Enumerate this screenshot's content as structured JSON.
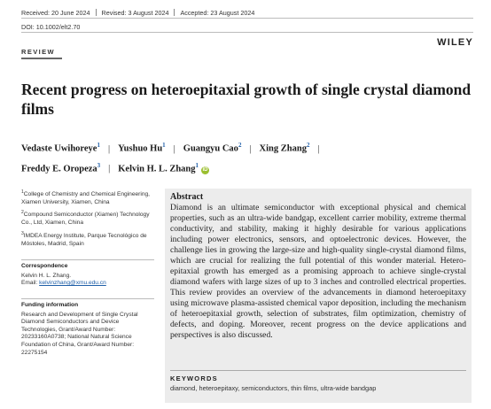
{
  "header": {
    "received": "Received: 20 June 2024",
    "revised": "Revised: 3 August 2024",
    "accepted": "Accepted: 23 August 2024",
    "doi": "DOI: 10.1002/elt2.70",
    "publisher": "WILEY",
    "article_type": "REVIEW"
  },
  "title": "Recent progress on heteroepitaxial growth of single crystal diamond films",
  "authors": [
    {
      "name": "Vedaste Uwihoreye",
      "aff": "1"
    },
    {
      "name": "Yushuo Hu",
      "aff": "1"
    },
    {
      "name": "Guangyu Cao",
      "aff": "2"
    },
    {
      "name": "Xing Zhang",
      "aff": "2"
    },
    {
      "name": "Freddy E. Oropeza",
      "aff": "3"
    },
    {
      "name": "Kelvin H. L. Zhang",
      "aff": "1"
    }
  ],
  "affiliations": [
    {
      "num": "1",
      "text": "College of Chemistry and Chemical Engineering, Xiamen University, Xiamen, China"
    },
    {
      "num": "2",
      "text": "Compound Semiconductor (Xiamen) Technology Co., Ltd, Xiamen, China"
    },
    {
      "num": "3",
      "text": "IMDEA Energy Institute, Parque Tecnológico de Móstoles, Madrid, Spain"
    }
  ],
  "correspondence": {
    "heading": "Correspondence",
    "name": "Kelvin H. L. Zhang.",
    "email_label": "Email:",
    "email": "kelvinzhang@xmu.edu.cn"
  },
  "funding": {
    "heading": "Funding information",
    "text": "Research and Development of Single Crystal Diamond Semiconductors and Device Technologies, Grant/Award Number: 20233160A0738; National Natural Science Foundation of China, Grant/Award Number: 22275154"
  },
  "abstract": {
    "heading": "Abstract",
    "text": "Diamond is an ultimate semiconductor with exceptional physical and chemical properties, such as an ultra-wide bandgap, excellent carrier mobility, extreme thermal conductivity, and stability, making it highly desirable for various applications including power electronics, sensors, and optoelectronic devices. However, the challenge lies in growing the large-size and high-quality single-crystal diamond films, which are crucial for realizing the full potential of this wonder material. Hetero-epitaxial growth has emerged as a promising approach to achieve single-crystal diamond wafers with large sizes of up to 3 inches and controlled electrical properties. This review provides an overview of the advancements in diamond heteroepitaxy using microwave plasma-assisted chemical vapor deposition, including the mechanism of heteroepitaxial growth, selection of substrates, film optimization, chemistry of defects, and doping. Moreover, recent progress on the device applications and perspectives is also discussed."
  },
  "keywords": {
    "heading": "KEYWORDS",
    "text": "diamond, heteroepitaxy, semiconductors, thin films, ultra-wide bandgap"
  },
  "colors": {
    "link": "#1f5fa8",
    "orcid": "#9bbf2f",
    "abstract_bg": "#ececec"
  }
}
